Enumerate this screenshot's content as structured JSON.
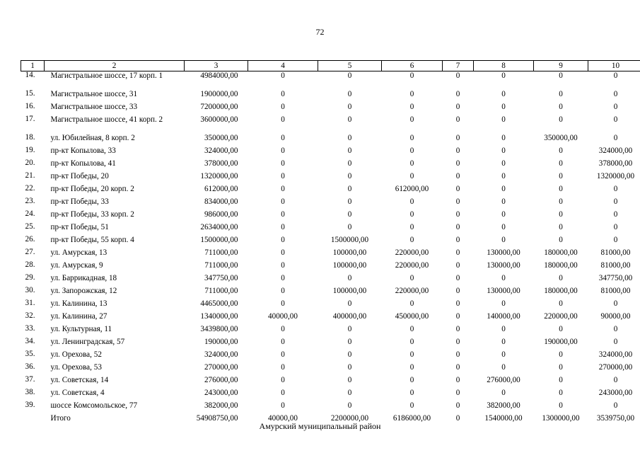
{
  "page_number": "72",
  "header": [
    "1",
    "2",
    "3",
    "4",
    "5",
    "6",
    "7",
    "8",
    "9",
    "10"
  ],
  "rows": [
    [
      "14.",
      "Магистральное шоссе, 17 корп. 1",
      "4984000,00",
      "0",
      "0",
      "0",
      "0",
      "0",
      "0",
      "0"
    ],
    [
      "15.",
      "Магистральное шоссе, 31",
      "1900000,00",
      "0",
      "0",
      "0",
      "0",
      "0",
      "0",
      "0"
    ],
    [
      "16.",
      "Магистральное шоссе, 33",
      "7200000,00",
      "0",
      "0",
      "0",
      "0",
      "0",
      "0",
      "0"
    ],
    [
      "17.",
      "Магистральное шоссе, 41 корп. 2",
      "3600000,00",
      "0",
      "0",
      "0",
      "0",
      "0",
      "0",
      "0"
    ],
    [
      "18.",
      "ул. Юбилейная, 8 корп. 2",
      "350000,00",
      "0",
      "0",
      "0",
      "0",
      "0",
      "350000,00",
      "0"
    ],
    [
      "19.",
      "пр-кт Копылова, 33",
      "324000,00",
      "0",
      "0",
      "0",
      "0",
      "0",
      "0",
      "324000,00"
    ],
    [
      "20.",
      "пр-кт Копылова, 41",
      "378000,00",
      "0",
      "0",
      "0",
      "0",
      "0",
      "0",
      "378000,00"
    ],
    [
      "21.",
      "пр-кт Победы, 20",
      "1320000,00",
      "0",
      "0",
      "0",
      "0",
      "0",
      "0",
      "1320000,00"
    ],
    [
      "22.",
      "пр-кт Победы, 20 корп. 2",
      "612000,00",
      "0",
      "0",
      "612000,00",
      "0",
      "0",
      "0",
      "0"
    ],
    [
      "23.",
      "пр-кт Победы, 33",
      "834000,00",
      "0",
      "0",
      "0",
      "0",
      "0",
      "0",
      "0"
    ],
    [
      "24.",
      "пр-кт Победы, 33 корп. 2",
      "986000,00",
      "0",
      "0",
      "0",
      "0",
      "0",
      "0",
      "0"
    ],
    [
      "25.",
      "пр-кт Победы, 51",
      "2634000,00",
      "0",
      "0",
      "0",
      "0",
      "0",
      "0",
      "0"
    ],
    [
      "26.",
      "пр-кт Победы, 55 корп. 4",
      "1500000,00",
      "0",
      "1500000,00",
      "0",
      "0",
      "0",
      "0",
      "0"
    ],
    [
      "27.",
      "ул. Амурская, 13",
      "711000,00",
      "0",
      "100000,00",
      "220000,00",
      "0",
      "130000,00",
      "180000,00",
      "81000,00"
    ],
    [
      "28.",
      "ул. Амурская, 9",
      "711000,00",
      "0",
      "100000,00",
      "220000,00",
      "0",
      "130000,00",
      "180000,00",
      "81000,00"
    ],
    [
      "29.",
      "ул. Баррикадная, 18",
      "347750,00",
      "0",
      "0",
      "0",
      "0",
      "0",
      "0",
      "347750,00"
    ],
    [
      "30.",
      "ул. Запорожская, 12",
      "711000,00",
      "0",
      "100000,00",
      "220000,00",
      "0",
      "130000,00",
      "180000,00",
      "81000,00"
    ],
    [
      "31.",
      "ул. Калинина, 13",
      "4465000,00",
      "0",
      "0",
      "0",
      "0",
      "0",
      "0",
      "0"
    ],
    [
      "32.",
      "ул. Калинина, 27",
      "1340000,00",
      "40000,00",
      "400000,00",
      "450000,00",
      "0",
      "140000,00",
      "220000,00",
      "90000,00"
    ],
    [
      "33.",
      "ул. Культурная, 11",
      "3439800,00",
      "0",
      "0",
      "0",
      "0",
      "0",
      "0",
      "0"
    ],
    [
      "34.",
      "ул. Ленинградская, 57",
      "190000,00",
      "0",
      "0",
      "0",
      "0",
      "0",
      "190000,00",
      "0"
    ],
    [
      "35.",
      "ул. Орехова, 52",
      "324000,00",
      "0",
      "0",
      "0",
      "0",
      "0",
      "0",
      "324000,00"
    ],
    [
      "36.",
      "ул. Орехова, 53",
      "270000,00",
      "0",
      "0",
      "0",
      "0",
      "0",
      "0",
      "270000,00"
    ],
    [
      "37.",
      "ул. Советская, 14",
      "276000,00",
      "0",
      "0",
      "0",
      "0",
      "276000,00",
      "0",
      "0"
    ],
    [
      "38.",
      "ул. Советская, 4",
      "243000,00",
      "0",
      "0",
      "0",
      "0",
      "0",
      "0",
      "243000,00"
    ],
    [
      "39.",
      "шоссе Комсомольское, 77",
      "382000,00",
      "0",
      "0",
      "0",
      "0",
      "382000,00",
      "0",
      "0"
    ]
  ],
  "total": [
    "",
    "Итого",
    "54908750,00",
    "40000,00",
    "2200000,00",
    "6186000,00",
    "0",
    "1540000,00",
    "1300000,00",
    "3539750,00"
  ],
  "footer_note": "Амурский муниципальный район"
}
